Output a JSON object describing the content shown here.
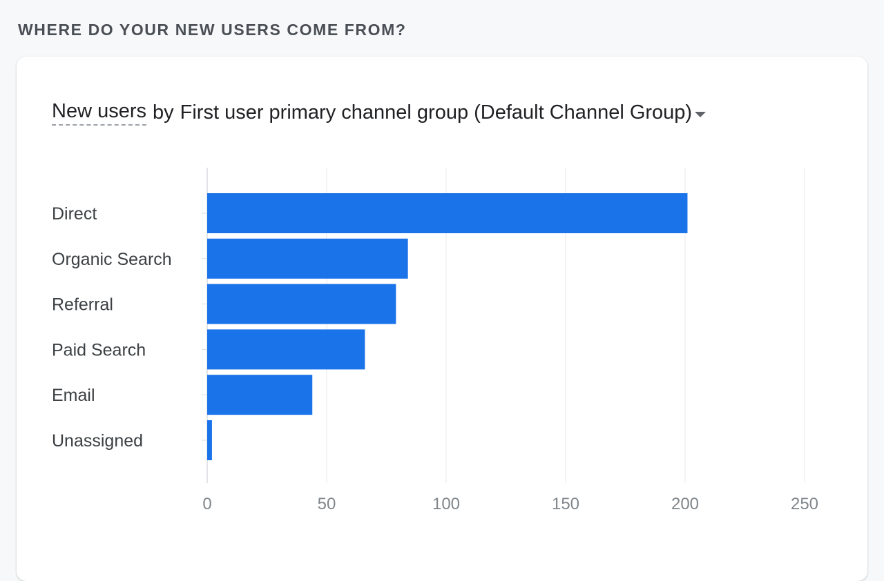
{
  "section": {
    "heading": "WHERE DO YOUR NEW USERS COME FROM?"
  },
  "card": {
    "title_metric": "New users",
    "title_by": "by",
    "title_dimension": "First user primary channel group (Default Channel Group)"
  },
  "colors": {
    "bar": "#1a73e8",
    "grid": "#e8eaed",
    "axis": "#dadce0"
  },
  "chart_data": {
    "type": "bar",
    "orientation": "horizontal",
    "categories": [
      "Direct",
      "Organic Search",
      "Referral",
      "Paid Search",
      "Email",
      "Unassigned"
    ],
    "values": [
      201,
      84,
      79,
      66,
      44,
      2
    ],
    "xlim": [
      0,
      250
    ],
    "xticks": [
      0,
      50,
      100,
      150,
      200,
      250
    ],
    "grid": true
  }
}
